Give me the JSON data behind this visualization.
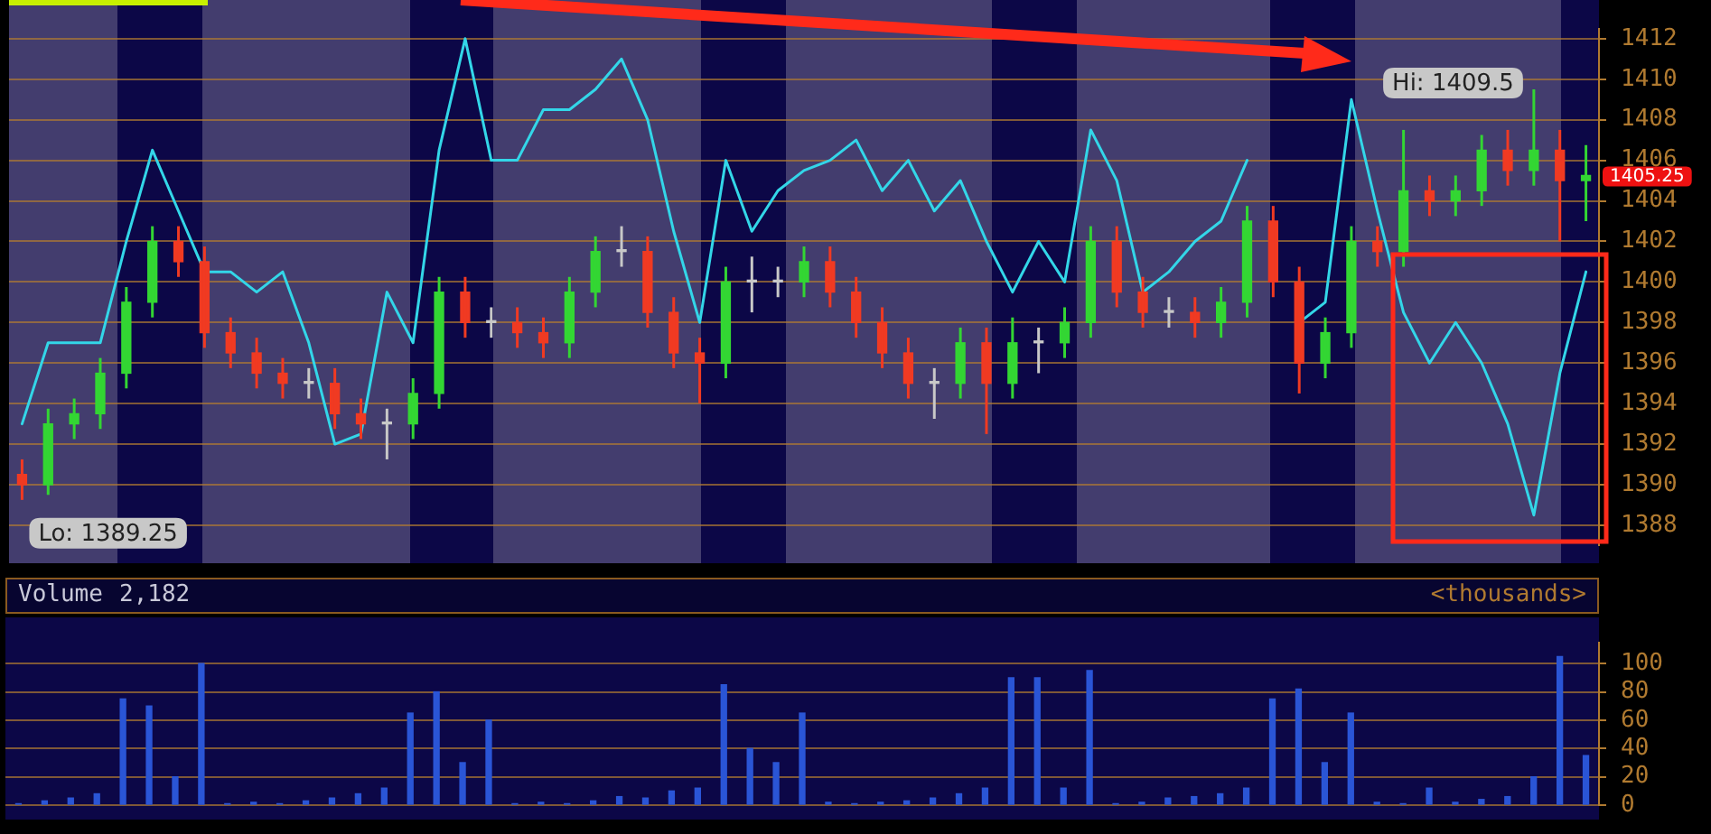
{
  "chart_data": [
    {
      "type": "candlestick",
      "categories": [
        null,
        null,
        null,
        null,
        null,
        null,
        null,
        null,
        null,
        null,
        null,
        null,
        null,
        null,
        null,
        null,
        null,
        null,
        null,
        null,
        null,
        null,
        null,
        null,
        null,
        null,
        null,
        null,
        null,
        null,
        null,
        null,
        null,
        null,
        null,
        null,
        null,
        null,
        null,
        null,
        null,
        null,
        null,
        null,
        null,
        null,
        null,
        null,
        null,
        null,
        null,
        null,
        null,
        null,
        null,
        null,
        null,
        null,
        null,
        null,
        null
      ],
      "ohlc": [
        [
          1390.5,
          1391.25,
          1389.25,
          1390
        ],
        [
          1390,
          1393.75,
          1389.5,
          1393
        ],
        [
          1393,
          1394.25,
          1392.25,
          1393.5
        ],
        [
          1393.5,
          1396.25,
          1392.75,
          1395.5
        ],
        [
          1395.5,
          1399.75,
          1394.75,
          1399
        ],
        [
          1399,
          1402.75,
          1398.25,
          1402
        ],
        [
          1402,
          1402.75,
          1400.25,
          1401
        ],
        [
          1401,
          1401.75,
          1396.75,
          1397.5
        ],
        [
          1397.5,
          1398.25,
          1395.75,
          1396.5
        ],
        [
          1396.5,
          1397.25,
          1394.75,
          1395.5
        ],
        [
          1395.5,
          1396.25,
          1394.25,
          1395
        ],
        [
          1395,
          1395.75,
          1394.25,
          1395
        ],
        [
          1395,
          1395.75,
          1392.75,
          1393.5
        ],
        [
          1393.5,
          1394.25,
          1392.25,
          1393
        ],
        [
          1393,
          1393.75,
          1391.25,
          1393
        ],
        [
          1393,
          1395.25,
          1392.25,
          1394.5
        ],
        [
          1394.5,
          1400.25,
          1393.75,
          1399.5
        ],
        [
          1399.5,
          1400.25,
          1397.25,
          1398
        ],
        [
          1398,
          1398.75,
          1397.25,
          1398
        ],
        [
          1398,
          1398.75,
          1396.75,
          1397.5
        ],
        [
          1397.5,
          1398.25,
          1396.25,
          1397
        ],
        [
          1397,
          1400.25,
          1396.25,
          1399.5
        ],
        [
          1399.5,
          1402.25,
          1398.75,
          1401.5
        ],
        [
          1401.5,
          1402.75,
          1400.75,
          1401.5
        ],
        [
          1401.5,
          1402.25,
          1397.75,
          1398.5
        ],
        [
          1398.5,
          1399.25,
          1395.75,
          1396.5
        ],
        [
          1396.5,
          1397.25,
          1394,
          1396
        ],
        [
          1396,
          1400.75,
          1395.25,
          1400
        ],
        [
          1400,
          1401.25,
          1398.5,
          1400
        ],
        [
          1400,
          1400.75,
          1399.25,
          1400
        ],
        [
          1400,
          1401.75,
          1399.25,
          1401
        ],
        [
          1401,
          1401.75,
          1398.75,
          1399.5
        ],
        [
          1399.5,
          1400.25,
          1397.25,
          1398
        ],
        [
          1398,
          1398.75,
          1395.75,
          1396.5
        ],
        [
          1396.5,
          1397.25,
          1394.25,
          1395
        ],
        [
          1395,
          1395.75,
          1393.25,
          1395
        ],
        [
          1395,
          1397.75,
          1394.25,
          1397
        ],
        [
          1397,
          1397.75,
          1392.5,
          1395
        ],
        [
          1395,
          1398.25,
          1394.25,
          1397
        ],
        [
          1397,
          1397.75,
          1395.5,
          1397
        ],
        [
          1397,
          1398.75,
          1396.25,
          1398
        ],
        [
          1398,
          1402.75,
          1397.25,
          1402
        ],
        [
          1402,
          1402.75,
          1398.75,
          1399.5
        ],
        [
          1399.5,
          1400.25,
          1397.75,
          1398.5
        ],
        [
          1398.5,
          1399.25,
          1397.75,
          1398.5
        ],
        [
          1398.5,
          1399.25,
          1397.25,
          1398
        ],
        [
          1398,
          1399.75,
          1397.25,
          1399
        ],
        [
          1399,
          1403.75,
          1398.25,
          1403
        ],
        [
          1403,
          1403.75,
          1399.25,
          1400
        ],
        [
          1400,
          1400.75,
          1394.5,
          1396
        ],
        [
          1396,
          1398.25,
          1395.25,
          1397.5
        ],
        [
          1397.5,
          1402.75,
          1396.75,
          1402
        ],
        [
          1402,
          1402.75,
          1400.75,
          1401.5
        ],
        [
          1401.5,
          1407.5,
          1400.75,
          1404.5
        ],
        [
          1404.5,
          1405.25,
          1403.25,
          1404
        ],
        [
          1404,
          1405.25,
          1403.25,
          1404.5
        ],
        [
          1404.5,
          1407.25,
          1403.75,
          1406.5
        ],
        [
          1406.5,
          1407.5,
          1404.75,
          1405.5
        ],
        [
          1405.5,
          1409.5,
          1404.75,
          1406.5
        ],
        [
          1406.5,
          1407.5,
          1402,
          1405
        ],
        [
          1405,
          1406.75,
          1403,
          1405.25
        ]
      ],
      "series": [
        {
          "type": "line",
          "color": "#33d6e8",
          "values": [
            1393,
            1397,
            1397,
            1397,
            1402,
            1406.5,
            1403.5,
            1400.5,
            1400.5,
            1399.5,
            1400.5,
            1397,
            1392,
            1392.5,
            1399.5,
            1397,
            1406.5,
            1412,
            1406,
            1406,
            1408.5,
            1408.5,
            1409.5,
            1411,
            1408,
            1402.5,
            1398,
            1406,
            1402.5,
            1404.5,
            1405.5,
            1406,
            1407,
            1404.5,
            1406,
            1403.5,
            1405,
            1402,
            1399.5,
            1402,
            1400,
            1407.5,
            1405,
            1399.5,
            1400.5,
            1402,
            1403,
            1406,
            null,
            1398,
            1399,
            1409,
            1403.5,
            1398.5,
            1396,
            1398,
            1396,
            1393,
            1388.5,
            1395.5,
            1400.5
          ]
        }
      ],
      "ylim": [
        1387,
        1412.5
      ],
      "yticks": [
        1388,
        1390,
        1392,
        1394,
        1396,
        1398,
        1400,
        1402,
        1404,
        1406,
        1408,
        1410,
        1412
      ],
      "grid": "y",
      "tick_labels": "y",
      "annotations": [
        "Lo: 1389.25",
        "Hi: 1409.5",
        "1405.25"
      ]
    },
    {
      "type": "bar",
      "title": "Volume",
      "ylabel": "<thousands>",
      "annotations": [
        "2,182"
      ],
      "categories": [
        null,
        null,
        null,
        null,
        null,
        null,
        null,
        null,
        null,
        null,
        null,
        null,
        null,
        null,
        null,
        null,
        null,
        null,
        null,
        null,
        null,
        null,
        null,
        null,
        null,
        null,
        null,
        null,
        null,
        null,
        null,
        null,
        null,
        null,
        null,
        null,
        null,
        null,
        null,
        null,
        null,
        null,
        null,
        null,
        null,
        null,
        null,
        null,
        null,
        null,
        null,
        null,
        null,
        null,
        null,
        null,
        null,
        null,
        null,
        null,
        null
      ],
      "values": [
        1,
        3,
        5,
        8,
        75,
        70,
        20,
        100,
        1,
        2,
        1,
        3,
        5,
        8,
        12,
        65,
        80,
        30,
        60,
        1,
        2,
        1,
        3,
        6,
        5,
        10,
        12,
        85,
        40,
        30,
        65,
        2,
        1,
        2,
        3,
        5,
        8,
        12,
        90,
        90,
        12,
        95,
        1,
        2,
        5,
        6,
        8,
        12,
        75,
        82,
        30,
        65,
        2,
        1,
        12,
        2,
        4,
        6,
        20,
        105,
        35
      ],
      "color": "#2a55d6",
      "ylim": [
        0,
        115
      ],
      "yticks": [
        0,
        20,
        40,
        60,
        80,
        100
      ],
      "grid": "y",
      "tick_labels": "y"
    }
  ]
}
